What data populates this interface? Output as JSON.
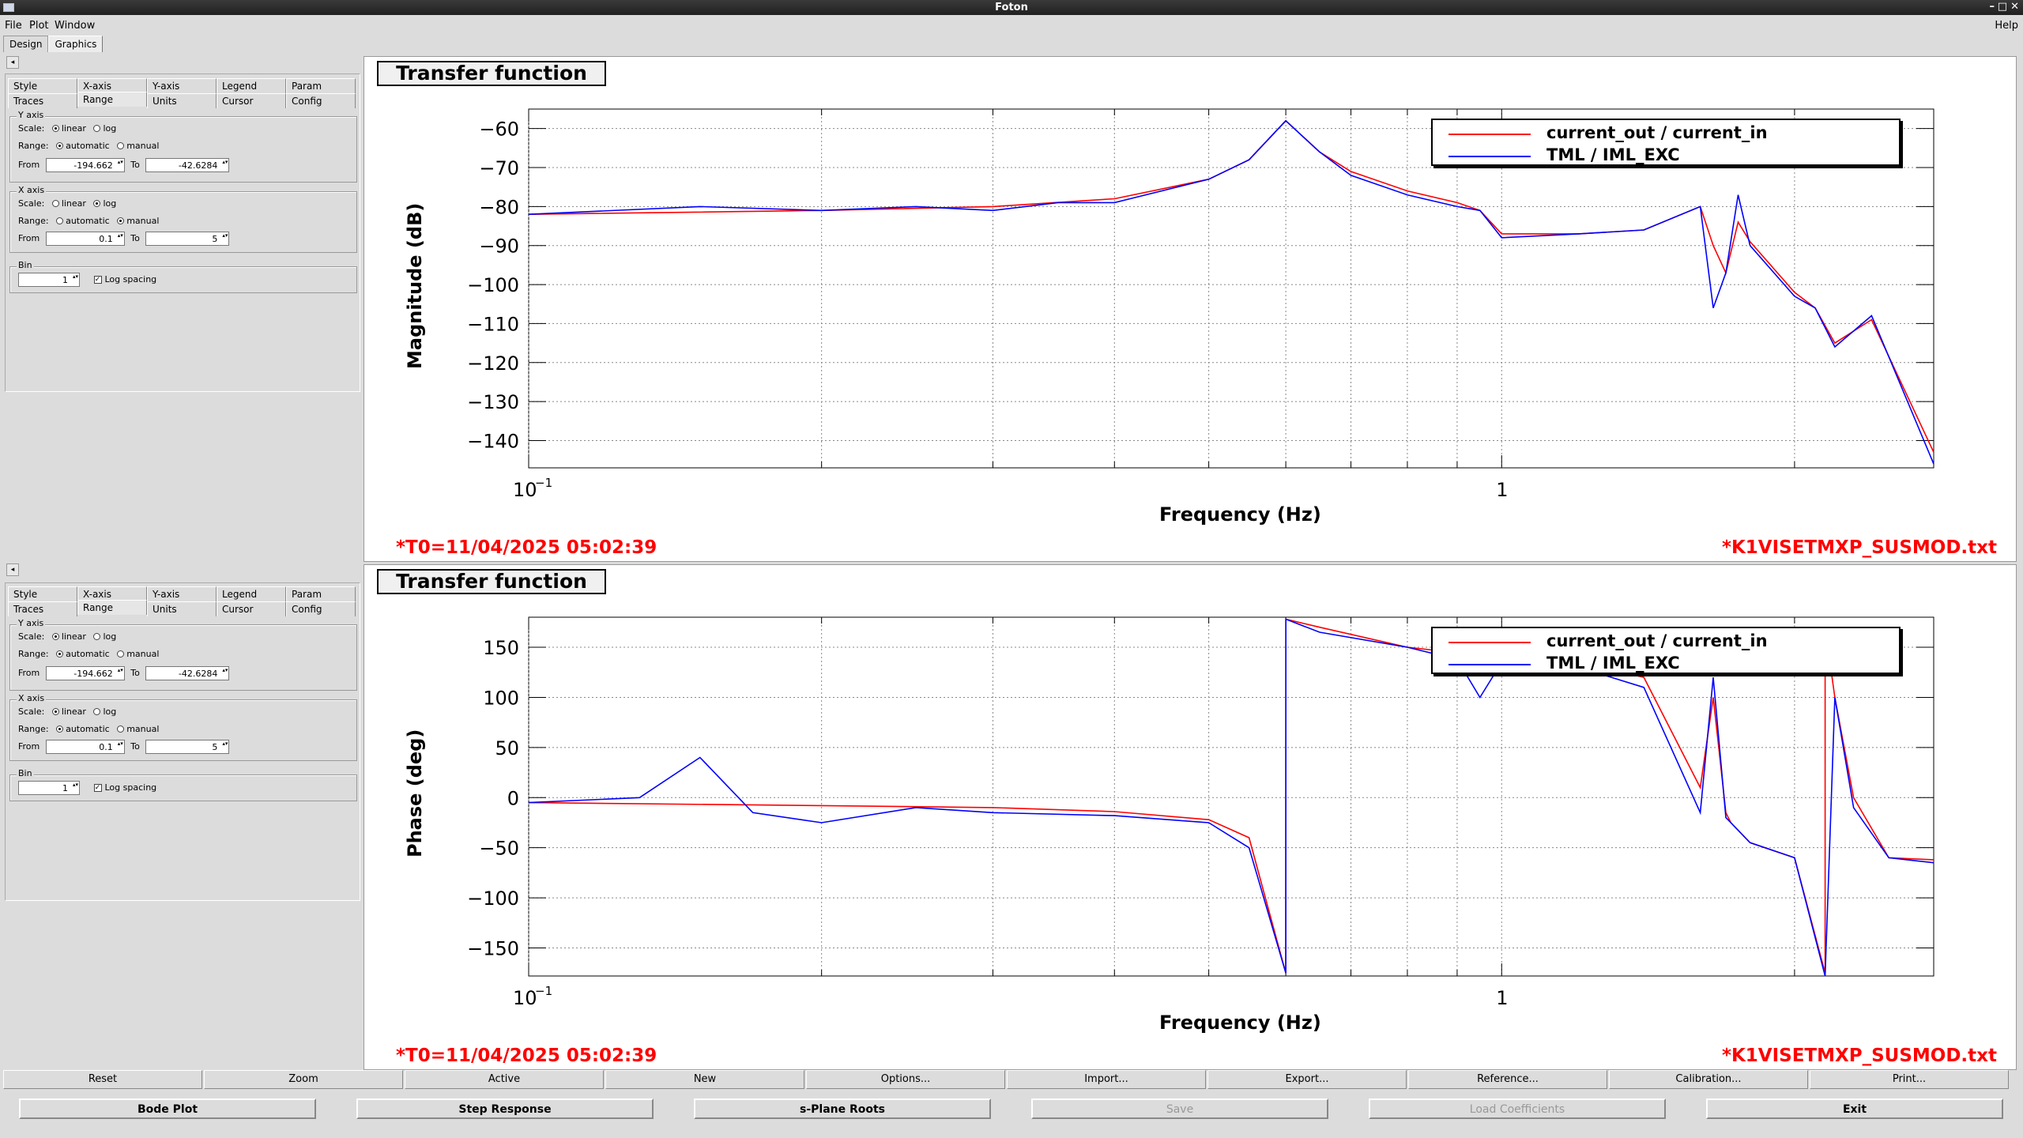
{
  "window": {
    "title": "Foton"
  },
  "menu": {
    "file": "File",
    "plot": "Plot",
    "window": "Window",
    "help": "Help"
  },
  "main_tabs": [
    "Design",
    "Graphics"
  ],
  "control_tabs": {
    "row1": [
      "Style",
      "X-axis",
      "Y-axis",
      "Legend",
      "Param"
    ],
    "row2": [
      "Traces",
      "Range",
      "Units",
      "Cursor",
      "Config"
    ]
  },
  "controls": [
    {
      "y_axis": {
        "title": "Y axis",
        "scale_label": "Scale:",
        "scale_options": [
          "linear",
          "log"
        ],
        "scale_selected": "linear",
        "range_label": "Range:",
        "range_options": [
          "automatic",
          "manual"
        ],
        "range_selected": "automatic",
        "from_label": "From",
        "from_value": "-194.662",
        "to_label": "To",
        "to_value": "-42.6284"
      },
      "x_axis": {
        "title": "X axis",
        "scale_label": "Scale:",
        "scale_options": [
          "linear",
          "log"
        ],
        "scale_selected": "log",
        "range_label": "Range:",
        "range_options": [
          "automatic",
          "manual"
        ],
        "range_selected": "manual",
        "from_label": "From",
        "from_value": "0.1",
        "to_label": "To",
        "to_value": "5"
      },
      "bin": {
        "title": "Bin",
        "value": "1",
        "log_spacing_label": "Log spacing",
        "log_spacing_checked": true
      }
    },
    {
      "y_axis": {
        "title": "Y axis",
        "scale_label": "Scale:",
        "scale_options": [
          "linear",
          "log"
        ],
        "scale_selected": "linear",
        "range_label": "Range:",
        "range_options": [
          "automatic",
          "manual"
        ],
        "range_selected": "automatic",
        "from_label": "From",
        "from_value": "-194.662",
        "to_label": "To",
        "to_value": "-42.6284"
      },
      "x_axis": {
        "title": "X axis",
        "scale_label": "Scale:",
        "scale_options": [
          "linear",
          "log"
        ],
        "scale_selected": "linear",
        "range_label": "Range:",
        "range_options": [
          "automatic",
          "manual"
        ],
        "range_selected": "automatic",
        "from_label": "From",
        "from_value": "0.1",
        "to_label": "To",
        "to_value": "5"
      },
      "bin": {
        "title": "Bin",
        "value": "1",
        "log_spacing_label": "Log spacing",
        "log_spacing_checked": true
      }
    }
  ],
  "colors": {
    "trace1": "#ff0000",
    "trace2": "#0000ff",
    "annotation": "#ff0000"
  },
  "plots": [
    {
      "title": "Transfer function",
      "ylabel": "Magnitude (dB)",
      "xlabel": "Frequency (Hz)",
      "t0": "*T0=11/04/2025 05:02:39",
      "file": "*K1VISETMXP_SUSMOD.txt",
      "legend": [
        "current_out / current_in",
        "TML / IML_EXC"
      ]
    },
    {
      "title": "Transfer function",
      "ylabel": "Phase (deg)",
      "xlabel": "Frequency (Hz)",
      "t0": "*T0=11/04/2025 05:02:39",
      "file": "*K1VISETMXP_SUSMOD.txt",
      "legend": [
        "current_out / current_in",
        "TML / IML_EXC"
      ]
    }
  ],
  "chart_data": [
    {
      "type": "line",
      "title": "Transfer function",
      "xlabel": "Frequency (Hz)",
      "ylabel": "Magnitude (dB)",
      "xscale": "log",
      "xlim": [
        0.1,
        2.78
      ],
      "ylim": [
        -147,
        -55
      ],
      "xticks": [
        "10^-1",
        "1"
      ],
      "yticks": [
        -60,
        -70,
        -80,
        -90,
        -100,
        -110,
        -120,
        -130,
        -140
      ],
      "grid": true,
      "legend_position": "top-right",
      "series": [
        {
          "name": "current_out / current_in",
          "x": [
            0.1,
            0.2,
            0.3,
            0.4,
            0.5,
            0.55,
            0.6,
            0.65,
            0.7,
            0.8,
            0.9,
            0.95,
            1.0,
            1.2,
            1.4,
            1.6,
            1.65,
            1.7,
            1.75,
            1.8,
            2.0,
            2.1,
            2.2,
            2.4,
            2.78
          ],
          "y": [
            -82,
            -81,
            -80,
            -78,
            -73,
            -68,
            -58,
            -66,
            -71,
            -76,
            -79,
            -81,
            -87,
            -87,
            -86,
            -80,
            -90,
            -97,
            -84,
            -89,
            -102,
            -106,
            -115,
            -109,
            -143
          ]
        },
        {
          "name": "TML / IML_EXC",
          "x": [
            0.1,
            0.15,
            0.2,
            0.25,
            0.3,
            0.35,
            0.4,
            0.5,
            0.55,
            0.6,
            0.65,
            0.7,
            0.8,
            0.9,
            0.95,
            1.0,
            1.2,
            1.4,
            1.6,
            1.65,
            1.7,
            1.75,
            1.8,
            2.0,
            2.1,
            2.2,
            2.4,
            2.78
          ],
          "y": [
            -82,
            -80,
            -81,
            -80,
            -81,
            -79,
            -79,
            -73,
            -68,
            -58,
            -66,
            -72,
            -77,
            -80,
            -81,
            -88,
            -87,
            -86,
            -80,
            -106,
            -97,
            -77,
            -90,
            -103,
            -106,
            -116,
            -108,
            -146
          ]
        }
      ]
    },
    {
      "type": "line",
      "title": "Transfer function",
      "xlabel": "Frequency (Hz)",
      "ylabel": "Phase (deg)",
      "xscale": "log",
      "xlim": [
        0.1,
        2.78
      ],
      "ylim": [
        -178,
        180
      ],
      "xticks": [
        "10^-1",
        "1"
      ],
      "yticks": [
        150,
        100,
        50,
        0,
        -50,
        -100,
        -150
      ],
      "grid": true,
      "legend_position": "top-right",
      "series": [
        {
          "name": "current_out / current_in",
          "x": [
            0.1,
            0.2,
            0.3,
            0.4,
            0.5,
            0.55,
            0.6,
            0.6001,
            0.65,
            0.8,
            0.95,
            1.0,
            1.2,
            1.4,
            1.6,
            1.65,
            1.7,
            1.72,
            1.8,
            2.0,
            2.15,
            2.1501,
            2.2,
            2.3,
            2.5,
            2.78
          ],
          "y": [
            -5,
            -8,
            -10,
            -14,
            -22,
            -40,
            -175,
            178,
            170,
            150,
            142,
            135,
            135,
            120,
            10,
            100,
            -15,
            -25,
            -45,
            -60,
            -175,
            170,
            100,
            0,
            -60,
            -62
          ]
        },
        {
          "name": "TML / IML_EXC",
          "x": [
            0.1,
            0.13,
            0.15,
            0.17,
            0.2,
            0.25,
            0.3,
            0.4,
            0.5,
            0.55,
            0.6,
            0.6001,
            0.65,
            0.8,
            0.9,
            0.95,
            1.0,
            1.2,
            1.4,
            1.6,
            1.65,
            1.7,
            1.72,
            1.8,
            2.0,
            2.15,
            2.2,
            2.3,
            2.5,
            2.78
          ],
          "y": [
            -5,
            0,
            40,
            -15,
            -25,
            -10,
            -15,
            -18,
            -25,
            -50,
            -175,
            178,
            165,
            150,
            138,
            100,
            135,
            130,
            110,
            -15,
            120,
            -20,
            -25,
            -45,
            -60,
            -178,
            100,
            -10,
            -60,
            -65
          ]
        }
      ]
    }
  ],
  "toolbar": [
    "Reset",
    "Zoom",
    "Active",
    "New",
    "Options...",
    "Import...",
    "Export...",
    "Reference...",
    "Calibration...",
    "Print..."
  ],
  "bottom_buttons": [
    {
      "label": "Bode Plot",
      "enabled": true
    },
    {
      "label": "Step Response",
      "enabled": true
    },
    {
      "label": "s-Plane Roots",
      "enabled": true
    },
    {
      "label": "Save",
      "enabled": false
    },
    {
      "label": "Load Coefficients",
      "enabled": false
    },
    {
      "label": "Exit",
      "enabled": true
    }
  ]
}
